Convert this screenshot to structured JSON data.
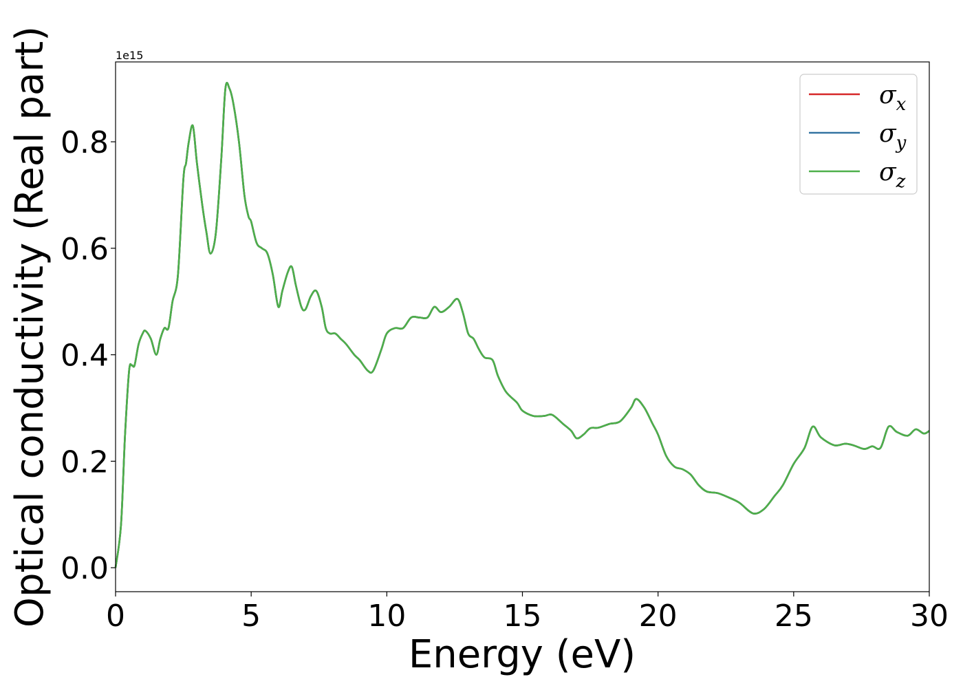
{
  "chart_data": {
    "type": "line",
    "xlabel": "Energy (eV)",
    "ylabel": "Optical conductivity (Real part)",
    "y_offset_label": "1e15",
    "xlim": [
      0,
      30
    ],
    "ylim": [
      -0.045,
      0.95
    ],
    "x_ticks": [
      0,
      5,
      10,
      15,
      20,
      25,
      30
    ],
    "x_tick_labels": [
      "0",
      "5",
      "10",
      "15",
      "20",
      "25",
      "30"
    ],
    "y_ticks": [
      0.0,
      0.2,
      0.4,
      0.6,
      0.8
    ],
    "y_tick_labels": [
      "0.0",
      "0.2",
      "0.4",
      "0.6",
      "0.8"
    ],
    "grid": false,
    "legend_position": "top-right",
    "legend": [
      {
        "base": "σ",
        "sub": "x",
        "color": "#d62728"
      },
      {
        "base": "σ",
        "sub": "y",
        "color": "#3274a1"
      },
      {
        "base": "σ",
        "sub": "z",
        "color": "#4daf4a"
      }
    ],
    "x": [
      0,
      0.2,
      0.35,
      0.5,
      0.6,
      0.7,
      0.85,
      1.0,
      1.1,
      1.3,
      1.5,
      1.65,
      1.8,
      1.95,
      2.1,
      2.3,
      2.5,
      2.6,
      2.7,
      2.85,
      3.0,
      3.2,
      3.35,
      3.5,
      3.7,
      3.9,
      4.05,
      4.2,
      4.35,
      4.55,
      4.75,
      4.9,
      5.0,
      5.2,
      5.4,
      5.6,
      5.8,
      6.0,
      6.15,
      6.35,
      6.5,
      6.65,
      6.85,
      7.0,
      7.2,
      7.4,
      7.6,
      7.75,
      7.9,
      8.1,
      8.3,
      8.5,
      8.8,
      9.0,
      9.3,
      9.5,
      9.8,
      10.0,
      10.3,
      10.6,
      10.9,
      11.2,
      11.5,
      11.75,
      12.0,
      12.3,
      12.6,
      12.8,
      13.0,
      13.2,
      13.4,
      13.6,
      13.9,
      14.1,
      14.4,
      14.8,
      15.0,
      15.4,
      15.8,
      16.1,
      16.5,
      16.8,
      17.0,
      17.25,
      17.5,
      17.8,
      18.2,
      18.6,
      19.0,
      19.2,
      19.5,
      19.8,
      20.0,
      20.3,
      20.6,
      20.9,
      21.2,
      21.5,
      21.8,
      22.2,
      22.6,
      23.0,
      23.5,
      23.9,
      24.3,
      24.6,
      25.0,
      25.4,
      25.7,
      26.0,
      26.5,
      26.9,
      27.2,
      27.6,
      27.9,
      28.2,
      28.5,
      28.8,
      29.2,
      29.5,
      29.8,
      30.0
    ],
    "series": [
      {
        "name": "σx",
        "color": "#d62728",
        "values": [
          0.0,
          0.08,
          0.25,
          0.37,
          0.38,
          0.38,
          0.42,
          0.44,
          0.445,
          0.43,
          0.4,
          0.43,
          0.45,
          0.45,
          0.5,
          0.55,
          0.73,
          0.76,
          0.8,
          0.83,
          0.76,
          0.68,
          0.63,
          0.59,
          0.63,
          0.77,
          0.9,
          0.9,
          0.87,
          0.8,
          0.7,
          0.66,
          0.65,
          0.61,
          0.6,
          0.59,
          0.55,
          0.49,
          0.52,
          0.555,
          0.565,
          0.53,
          0.49,
          0.485,
          0.51,
          0.52,
          0.49,
          0.45,
          0.44,
          0.44,
          0.43,
          0.42,
          0.4,
          0.39,
          0.37,
          0.37,
          0.41,
          0.44,
          0.45,
          0.45,
          0.47,
          0.47,
          0.47,
          0.49,
          0.48,
          0.49,
          0.505,
          0.48,
          0.44,
          0.43,
          0.41,
          0.395,
          0.39,
          0.36,
          0.33,
          0.31,
          0.295,
          0.285,
          0.285,
          0.287,
          0.27,
          0.257,
          0.243,
          0.25,
          0.262,
          0.263,
          0.27,
          0.275,
          0.3,
          0.317,
          0.3,
          0.27,
          0.25,
          0.21,
          0.19,
          0.185,
          0.175,
          0.155,
          0.143,
          0.14,
          0.132,
          0.122,
          0.102,
          0.11,
          0.135,
          0.155,
          0.195,
          0.225,
          0.265,
          0.245,
          0.23,
          0.233,
          0.23,
          0.223,
          0.228,
          0.225,
          0.265,
          0.255,
          0.248,
          0.26,
          0.252,
          0.257
        ]
      },
      {
        "name": "σy",
        "color": "#3274a1",
        "values": [
          0.0,
          0.08,
          0.25,
          0.37,
          0.38,
          0.38,
          0.42,
          0.44,
          0.445,
          0.43,
          0.4,
          0.43,
          0.45,
          0.45,
          0.5,
          0.55,
          0.73,
          0.76,
          0.8,
          0.83,
          0.76,
          0.68,
          0.63,
          0.59,
          0.63,
          0.77,
          0.9,
          0.9,
          0.87,
          0.8,
          0.7,
          0.66,
          0.65,
          0.61,
          0.6,
          0.59,
          0.55,
          0.49,
          0.52,
          0.555,
          0.565,
          0.53,
          0.49,
          0.485,
          0.51,
          0.52,
          0.49,
          0.45,
          0.44,
          0.44,
          0.43,
          0.42,
          0.4,
          0.39,
          0.37,
          0.37,
          0.41,
          0.44,
          0.45,
          0.45,
          0.47,
          0.47,
          0.47,
          0.49,
          0.48,
          0.49,
          0.505,
          0.48,
          0.44,
          0.43,
          0.41,
          0.395,
          0.39,
          0.36,
          0.33,
          0.31,
          0.295,
          0.285,
          0.285,
          0.287,
          0.27,
          0.257,
          0.243,
          0.25,
          0.262,
          0.263,
          0.27,
          0.275,
          0.3,
          0.317,
          0.3,
          0.27,
          0.25,
          0.21,
          0.19,
          0.185,
          0.175,
          0.155,
          0.143,
          0.14,
          0.132,
          0.122,
          0.102,
          0.11,
          0.135,
          0.155,
          0.195,
          0.225,
          0.265,
          0.245,
          0.23,
          0.233,
          0.23,
          0.223,
          0.228,
          0.225,
          0.265,
          0.255,
          0.248,
          0.26,
          0.252,
          0.257
        ]
      },
      {
        "name": "σz",
        "color": "#4daf4a",
        "values": [
          0.0,
          0.08,
          0.25,
          0.37,
          0.38,
          0.38,
          0.42,
          0.44,
          0.445,
          0.43,
          0.4,
          0.43,
          0.45,
          0.45,
          0.5,
          0.55,
          0.73,
          0.76,
          0.8,
          0.83,
          0.76,
          0.68,
          0.63,
          0.59,
          0.63,
          0.77,
          0.9,
          0.9,
          0.87,
          0.8,
          0.7,
          0.66,
          0.65,
          0.61,
          0.6,
          0.59,
          0.55,
          0.49,
          0.52,
          0.555,
          0.565,
          0.53,
          0.49,
          0.485,
          0.51,
          0.52,
          0.49,
          0.45,
          0.44,
          0.44,
          0.43,
          0.42,
          0.4,
          0.39,
          0.37,
          0.37,
          0.41,
          0.44,
          0.45,
          0.45,
          0.47,
          0.47,
          0.47,
          0.49,
          0.48,
          0.49,
          0.505,
          0.48,
          0.44,
          0.43,
          0.41,
          0.395,
          0.39,
          0.36,
          0.33,
          0.31,
          0.295,
          0.285,
          0.285,
          0.287,
          0.27,
          0.257,
          0.243,
          0.25,
          0.262,
          0.263,
          0.27,
          0.275,
          0.3,
          0.317,
          0.3,
          0.27,
          0.25,
          0.21,
          0.19,
          0.185,
          0.175,
          0.155,
          0.143,
          0.14,
          0.132,
          0.122,
          0.102,
          0.11,
          0.135,
          0.155,
          0.195,
          0.225,
          0.265,
          0.245,
          0.23,
          0.233,
          0.23,
          0.223,
          0.228,
          0.225,
          0.265,
          0.255,
          0.248,
          0.26,
          0.252,
          0.257
        ]
      }
    ]
  }
}
